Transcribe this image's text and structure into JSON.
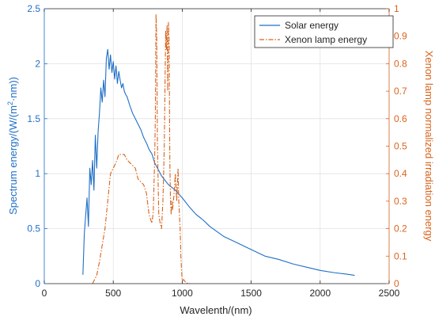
{
  "chart_data": {
    "type": "line",
    "title": "",
    "xlabel": "Wavelenth/(nm)",
    "ylabel_left": {
      "prefix": "Spectrum energy/(W/(m",
      "sup": "2",
      "suffix": "·nm))"
    },
    "ylabel_right": "Xenon lamp normalized irradiation energy",
    "xlim": [
      0,
      2500
    ],
    "ylim_left": [
      0,
      2.5
    ],
    "ylim_right": [
      0,
      1
    ],
    "xticks": [
      0,
      500,
      1000,
      1500,
      2000,
      2500
    ],
    "xtick_labels": [
      "0",
      "500",
      "1000",
      "1500",
      "2000",
      "2500"
    ],
    "yticks_left": [
      0,
      0.5,
      1,
      1.5,
      2,
      2.5
    ],
    "ytick_labels_left": [
      "0",
      "0.5",
      "1",
      "1.5",
      "2",
      "2.5"
    ],
    "yticks_right": [
      0,
      0.1,
      0.2,
      0.3,
      0.4,
      0.5,
      0.6,
      0.7,
      0.8,
      0.9,
      1
    ],
    "ytick_labels_right": [
      "0",
      "0.1",
      "0.2",
      "0.3",
      "0.4",
      "0.5",
      "0.6",
      "0.7",
      "0.8",
      "0.9",
      "1"
    ],
    "grid": true,
    "legend_position": "top-right",
    "colors": {
      "solar": "#1f6fc6",
      "xenon": "#d9631c",
      "left_axis": "#1f6fc6",
      "right_axis": "#d9631c",
      "grid": "#e2e2e2",
      "axis": "#262626"
    },
    "series": [
      {
        "name": "Solar energy",
        "axis": "left",
        "style": "solid",
        "x": [
          280,
          290,
          300,
          310,
          320,
          330,
          340,
          350,
          360,
          370,
          380,
          390,
          400,
          410,
          420,
          430,
          440,
          450,
          460,
          470,
          480,
          490,
          500,
          510,
          520,
          530,
          540,
          550,
          560,
          570,
          580,
          590,
          600,
          620,
          640,
          660,
          680,
          700,
          720,
          740,
          760,
          780,
          800,
          850,
          900,
          950,
          1000,
          1050,
          1100,
          1150,
          1200,
          1300,
          1400,
          1500,
          1600,
          1700,
          1800,
          1900,
          2000,
          2100,
          2200,
          2250
        ],
        "y": [
          0.08,
          0.45,
          0.62,
          0.78,
          0.52,
          1.05,
          0.9,
          1.12,
          0.85,
          1.35,
          1.05,
          1.38,
          1.55,
          1.78,
          1.65,
          1.85,
          1.7,
          2.05,
          2.13,
          1.95,
          2.08,
          1.92,
          2.02,
          1.86,
          1.98,
          1.82,
          1.93,
          1.85,
          1.78,
          1.82,
          1.75,
          1.72,
          1.7,
          1.62,
          1.55,
          1.5,
          1.45,
          1.4,
          1.33,
          1.28,
          1.22,
          1.18,
          1.1,
          0.98,
          0.9,
          0.85,
          0.78,
          0.7,
          0.63,
          0.58,
          0.52,
          0.43,
          0.37,
          0.31,
          0.25,
          0.22,
          0.18,
          0.15,
          0.12,
          0.1,
          0.085,
          0.075
        ]
      },
      {
        "name": "Xenon lamp energy",
        "axis": "right",
        "style": "dash-dot",
        "x": [
          350,
          380,
          400,
          420,
          440,
          460,
          480,
          500,
          520,
          540,
          560,
          580,
          600,
          620,
          640,
          660,
          680,
          700,
          720,
          740,
          760,
          780,
          790,
          800,
          805,
          810,
          815,
          820,
          825,
          830,
          840,
          850,
          860,
          870,
          880,
          885,
          890,
          895,
          900,
          905,
          910,
          915,
          920,
          925,
          930,
          940,
          950,
          960,
          970,
          975,
          980,
          985,
          990,
          995,
          1000,
          1010,
          1020,
          1040,
          1060
        ],
        "y": [
          0.0,
          0.03,
          0.08,
          0.14,
          0.2,
          0.3,
          0.4,
          0.42,
          0.44,
          0.47,
          0.47,
          0.47,
          0.45,
          0.44,
          0.43,
          0.42,
          0.38,
          0.37,
          0.36,
          0.33,
          0.25,
          0.22,
          0.26,
          0.45,
          0.6,
          0.98,
          0.9,
          0.52,
          0.38,
          0.25,
          0.22,
          0.2,
          0.3,
          0.5,
          0.92,
          0.85,
          0.94,
          0.7,
          0.95,
          0.88,
          0.45,
          0.3,
          0.25,
          0.3,
          0.27,
          0.32,
          0.4,
          0.3,
          0.42,
          0.3,
          0.25,
          0.2,
          0.1,
          0.05,
          0.01,
          0.015,
          0.008,
          0.0,
          0.0
        ]
      }
    ]
  }
}
